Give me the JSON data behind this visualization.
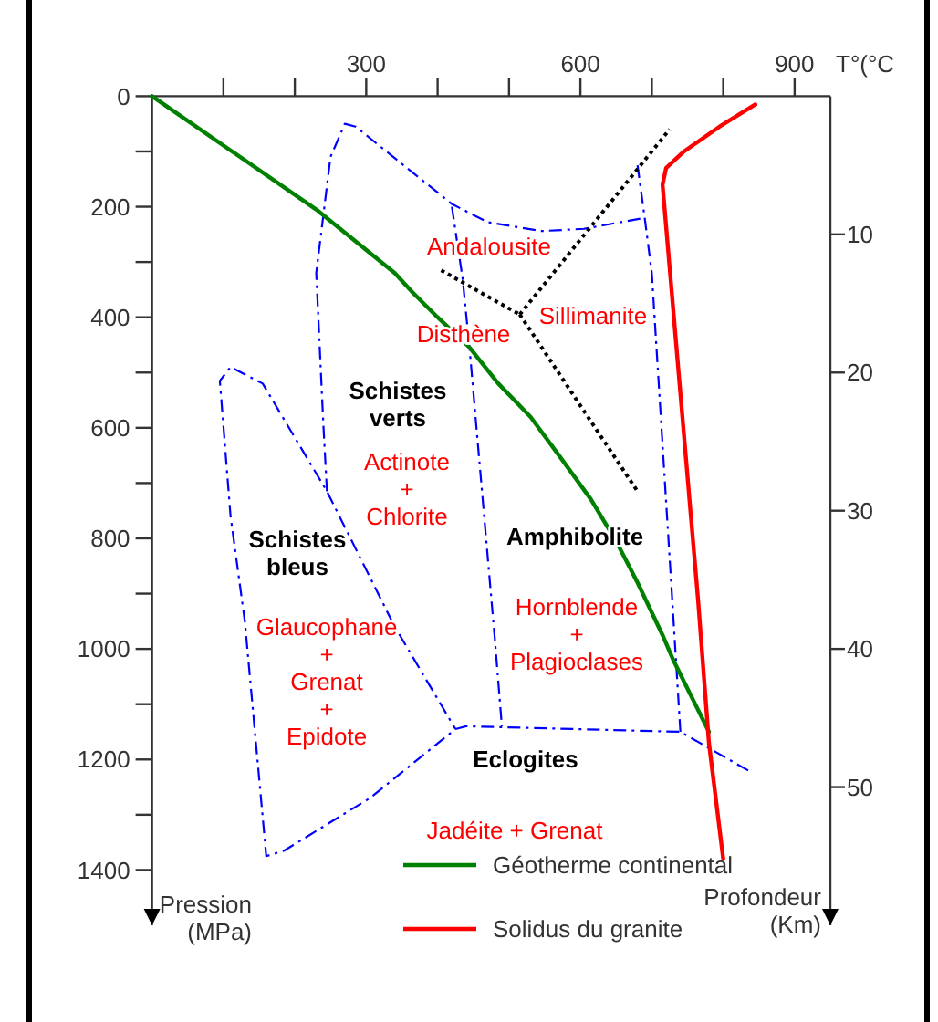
{
  "chart_data": {
    "type": "line",
    "xlabel": "T°(°C",
    "ylabel": "Pression\n(MPa)",
    "y2label": "Profondeur\n(Km)",
    "xlim": [
      0,
      950
    ],
    "xticks": [
      {
        "value": 100,
        "label": null
      },
      {
        "value": 200,
        "label": null
      },
      300,
      {
        "value": 400,
        "label": null
      },
      {
        "value": 500,
        "label": null
      },
      600,
      {
        "value": 700,
        "label": null
      },
      {
        "value": 800,
        "label": null
      },
      900
    ],
    "ylim": [
      1500,
      0
    ],
    "yticks": [
      0,
      {
        "value": 100,
        "label": null
      },
      200,
      {
        "value": 300,
        "label": null
      },
      400,
      {
        "value": 500,
        "label": null
      },
      600,
      {
        "value": 700,
        "label": null
      },
      800,
      {
        "value": 900,
        "label": null
      },
      1000,
      {
        "value": 1100,
        "label": null
      },
      1200,
      {
        "value": 1300,
        "label": null
      },
      1400
    ],
    "y2lim": [
      60,
      0
    ],
    "y2ticks": [
      10,
      20,
      30,
      40,
      50
    ],
    "legend": "bottom",
    "series": [
      {
        "x": [
          835,
          740,
          440,
          425,
          305,
          185,
          160,
          130,
          110,
          95,
          110,
          155,
          245,
          340,
          425
        ],
        "values": [
          1220,
          1150,
          1140,
          1145,
          1270,
          1365,
          1375,
          950,
          760,
          515,
          490,
          520,
          715,
          960,
          1145
        ],
        "color": "#0000ff",
        "line_style": "dashdot"
      },
      {
        "x": [
          245,
          240,
          230,
          250,
          270,
          285,
          420,
          470,
          545,
          605,
          690
        ],
        "values": [
          715,
          595,
          320,
          110,
          50,
          55,
          195,
          228,
          244,
          240,
          220
        ],
        "color": "#0000ff",
        "line_style": "dashdot"
      },
      {
        "x": [
          680,
          690,
          700,
          730,
          740
        ],
        "values": [
          125,
          220,
          320,
          940,
          1150
        ],
        "color": "#0000ff",
        "line_style": "dashdot"
      },
      {
        "x": [
          420,
          435,
          445,
          480,
          490
        ],
        "values": [
          200,
          330,
          460,
          980,
          1140
        ],
        "color": "#0000ff",
        "line_style": "dashdot"
      },
      {
        "x": [
          405,
          515
        ],
        "values": [
          315,
          395
        ],
        "color": "#000000",
        "line_style": "dotted"
      },
      {
        "x": [
          515,
          725
        ],
        "values": [
          395,
          60
        ],
        "color": "#000000",
        "line_style": "dotted"
      },
      {
        "x": [
          515,
          680
        ],
        "values": [
          395,
          715
        ],
        "color": "#000000",
        "line_style": "dotted"
      },
      {
        "name": "Géotherme continental",
        "x": [
          0,
          230,
          340,
          365,
          400,
          445,
          485,
          530,
          570,
          615,
          650,
          680,
          715,
          730,
          780
        ],
        "values": [
          0,
          205,
          320,
          355,
          400,
          455,
          520,
          580,
          650,
          730,
          805,
          880,
          975,
          1020,
          1150
        ],
        "color": "#008000",
        "line_style": "solid"
      },
      {
        "name": "Solidus du granite",
        "x": [
          845,
          795,
          745,
          720,
          715,
          765,
          780,
          800
        ],
        "values": [
          15,
          55,
          100,
          130,
          160,
          915,
          1170,
          1380
        ],
        "color": "#ff0000",
        "line_style": "solid"
      }
    ],
    "annotations": [
      "Andalousite",
      "Sillimanite",
      "Disthène",
      "Schistes\nverts",
      "Actinote\n+\nChlorite",
      "Schistes\nbleus",
      "Glaucophane\n+\nGrenat\n+\nEpidote",
      "Amphibolite",
      "Hornblende\n+\nPlagioclases",
      "Eclogites",
      "Jadéite + Grenat"
    ]
  }
}
